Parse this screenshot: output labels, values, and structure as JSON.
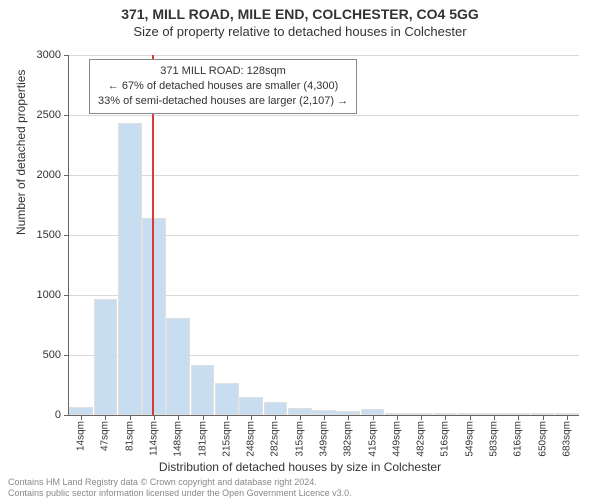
{
  "title": "371, MILL ROAD, MILE END, COLCHESTER, CO4 5GG",
  "subtitle": "Size of property relative to detached houses in Colchester",
  "y_axis_title": "Number of detached properties",
  "x_axis_title": "Distribution of detached houses by size in Colchester",
  "footer_line1": "Contains HM Land Registry data © Crown copyright and database right 2024.",
  "footer_line2": "Contains public sector information licensed under the Open Government Licence v3.0.",
  "chart": {
    "type": "histogram",
    "ylim": [
      0,
      3000
    ],
    "ytick_step": 500,
    "yticks": [
      0,
      500,
      1000,
      1500,
      2000,
      2500,
      3000
    ],
    "x_categories": [
      "14sqm",
      "47sqm",
      "81sqm",
      "114sqm",
      "148sqm",
      "181sqm",
      "215sqm",
      "248sqm",
      "282sqm",
      "315sqm",
      "349sqm",
      "382sqm",
      "415sqm",
      "449sqm",
      "482sqm",
      "516sqm",
      "549sqm",
      "583sqm",
      "616sqm",
      "650sqm",
      "683sqm"
    ],
    "values": [
      70,
      970,
      2430,
      1640,
      810,
      420,
      270,
      150,
      110,
      60,
      45,
      30,
      50,
      15,
      10,
      8,
      6,
      5,
      4,
      3,
      3
    ],
    "bar_color": "#c9ddf0",
    "bar_border_color": "#e0e0e0",
    "grid_color": "#d9d9d9",
    "axis_color": "#666666",
    "background_color": "#ffffff",
    "label_fontsize": 11,
    "tick_fontsize": 10
  },
  "marker": {
    "position_category_index": 3.4,
    "color": "#d93a3a",
    "box_lines": [
      "371 MILL ROAD: 128sqm",
      "← 67% of detached houses are smaller (4,300)",
      "33% of semi-detached houses are larger (2,107) →"
    ]
  }
}
